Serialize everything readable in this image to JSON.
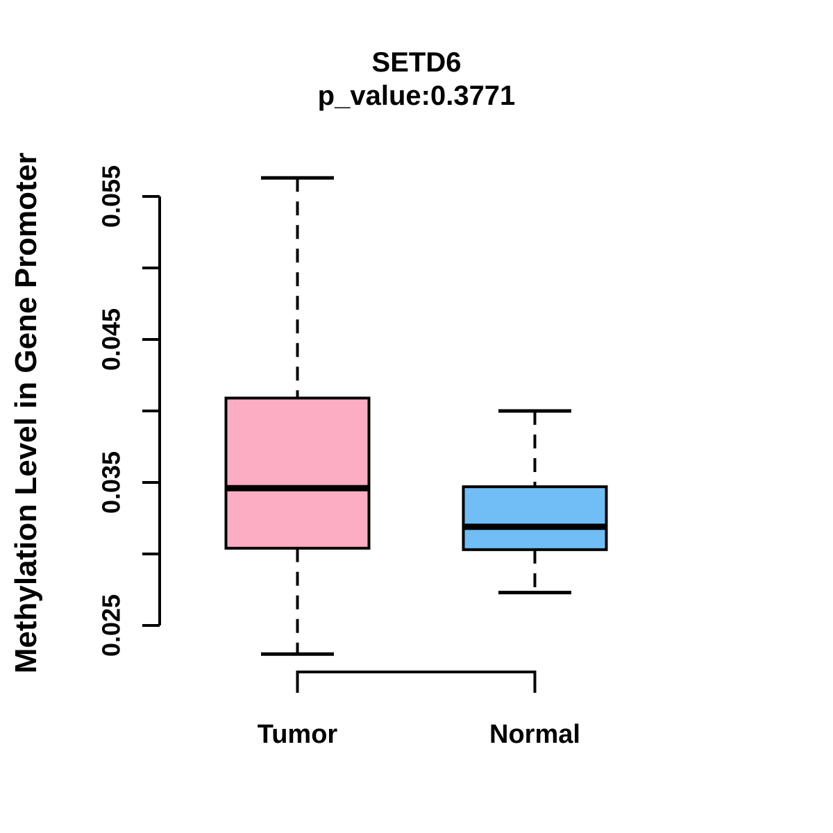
{
  "chart_data": {
    "type": "boxplot",
    "title": "SETD6",
    "subtitle": "p_value:0.3771",
    "gene": "SETD6",
    "p_value": 0.3771,
    "ylabel": "Methylation Level in Gene Promoter",
    "xlabel": "",
    "categories": [
      "Tumor",
      "Normal"
    ],
    "series": [
      {
        "name": "Tumor",
        "fill_color": "#FCADC3",
        "whisker_low": 0.023,
        "q1": 0.0304,
        "median": 0.0346,
        "q3": 0.0409,
        "whisker_high": 0.0563
      },
      {
        "name": "Normal",
        "fill_color": "#70BEF5",
        "whisker_low": 0.0273,
        "q1": 0.0303,
        "median": 0.0319,
        "q3": 0.0347,
        "whisker_high": 0.04
      }
    ],
    "y_axis": {
      "range": [
        0.025,
        0.055
      ],
      "tick_step": 0.005,
      "ticks": [
        0.025,
        0.03,
        0.035,
        0.04,
        0.045,
        0.05,
        0.055
      ],
      "labeled_ticks": [
        {
          "value": 0.025,
          "label": "0.025"
        },
        {
          "value": 0.035,
          "label": "0.035"
        },
        {
          "value": 0.045,
          "label": "0.045"
        },
        {
          "value": 0.055,
          "label": "0.055"
        }
      ]
    },
    "legend": "none",
    "grid": false,
    "stroke_color": "#000000",
    "background_color": "#FFFFFF",
    "whisker_style": "dashed"
  }
}
